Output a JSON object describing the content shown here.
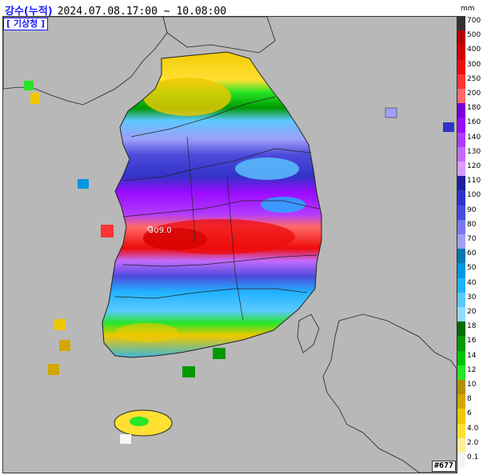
{
  "title": {
    "label": "강수(누적)",
    "period": "2024.07.08.17:00 ~ 10.08:00"
  },
  "agency": "[ 기상청 ]",
  "legend": {
    "unit": "mm",
    "classes": [
      {
        "label": "700",
        "color": "#333333"
      },
      {
        "label": "500",
        "color": "#b30000"
      },
      {
        "label": "400",
        "color": "#d20000"
      },
      {
        "label": "300",
        "color": "#ee0b0b"
      },
      {
        "label": "250",
        "color": "#ff3333"
      },
      {
        "label": "200",
        "color": "#ff6a6a"
      },
      {
        "label": "180",
        "color": "#7a00d6"
      },
      {
        "label": "160",
        "color": "#9a0aff"
      },
      {
        "label": "140",
        "color": "#b13bff"
      },
      {
        "label": "130",
        "color": "#c46bff"
      },
      {
        "label": "120",
        "color": "#d89bff"
      },
      {
        "label": "110",
        "color": "#1f1f9e"
      },
      {
        "label": "100",
        "color": "#3232c8"
      },
      {
        "label": "90",
        "color": "#4b4bdc"
      },
      {
        "label": "80",
        "color": "#7878ee"
      },
      {
        "label": "70",
        "color": "#9f9ff8"
      },
      {
        "label": "60",
        "color": "#0077b3"
      },
      {
        "label": "50",
        "color": "#0096e0"
      },
      {
        "label": "40",
        "color": "#20b3ff"
      },
      {
        "label": "30",
        "color": "#5cc8ff"
      },
      {
        "label": "20",
        "color": "#93dcff"
      },
      {
        "label": "18",
        "color": "#006e00"
      },
      {
        "label": "16",
        "color": "#009900"
      },
      {
        "label": "14",
        "color": "#00c300"
      },
      {
        "label": "12",
        "color": "#26e626"
      },
      {
        "label": "10",
        "color": "#b38f00"
      },
      {
        "label": "8",
        "color": "#d2a800"
      },
      {
        "label": "6",
        "color": "#f0c800"
      },
      {
        "label": "4.0",
        "color": "#ffe033"
      },
      {
        "label": "2.0",
        "color": "#ffee99"
      },
      {
        "label": "0.1",
        "color": "#f5f5f5"
      }
    ]
  },
  "max_label": "309.0",
  "stamp": "#677"
}
